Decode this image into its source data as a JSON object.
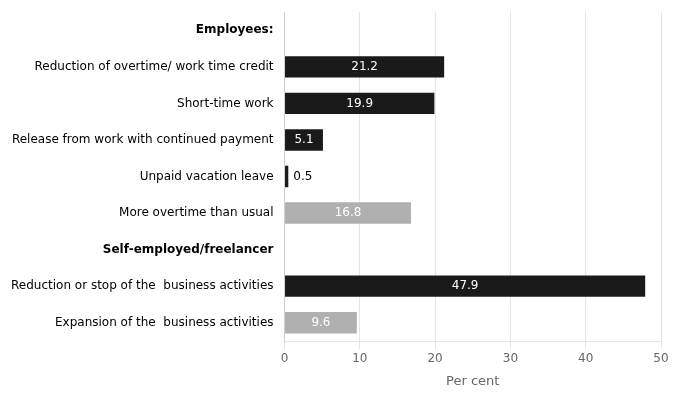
{
  "chart_data": {
    "type": "bar",
    "orientation": "horizontal",
    "categories": [
      "Expansion of the  business activities",
      "Reduction or stop of the  business activities",
      "Self-employed/freelancer",
      "More overtime than usual",
      "Unpaid vacation leave",
      "Release from work with continued payment",
      "Short-time work",
      "Reduction of overtime/ work time credit",
      "Employees:"
    ],
    "values": [
      9.6,
      47.9,
      null,
      16.8,
      0.5,
      5.1,
      19.9,
      21.2,
      null
    ],
    "colors": [
      "#b0b0b0",
      "#1a1a1a",
      null,
      "#b0b0b0",
      "#1a1a1a",
      "#1a1a1a",
      "#1a1a1a",
      "#1a1a1a",
      null
    ],
    "xlabel": "Per cent",
    "xlim": [
      0,
      50
    ],
    "xticks": [
      0,
      10,
      20,
      30,
      40,
      50
    ],
    "grid": true,
    "data_labels": true
  }
}
